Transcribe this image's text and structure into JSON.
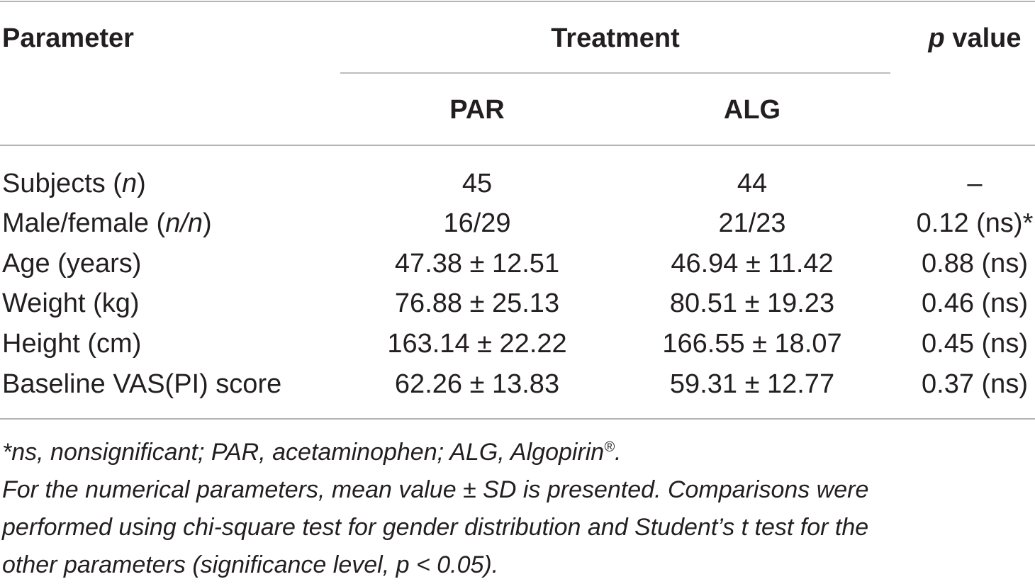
{
  "table": {
    "header": {
      "parameter": "Parameter",
      "treatment": "Treatment",
      "p_value_italic": "p",
      "p_value_rest": " value",
      "par": "PAR",
      "alg": "ALG"
    },
    "rows": [
      {
        "param": "Subjects (",
        "param_ital": "n",
        "param_end": ")",
        "par": "45",
        "alg": "44",
        "p": "–"
      },
      {
        "param": "Male/female (",
        "param_ital": "n/n",
        "param_end": ")",
        "par": "16/29",
        "alg": "21/23",
        "p": "0.12 (ns)*"
      },
      {
        "param": "Age (years)",
        "param_ital": "",
        "param_end": "",
        "par": "47.38 ± 12.51",
        "alg": "46.94 ± 11.42",
        "p": "0.88 (ns)"
      },
      {
        "param": "Weight (kg)",
        "param_ital": "",
        "param_end": "",
        "par": "76.88 ± 25.13",
        "alg": "80.51 ± 19.23",
        "p": "0.46 (ns)"
      },
      {
        "param": "Height (cm)",
        "param_ital": "",
        "param_end": "",
        "par": "163.14 ± 22.22",
        "alg": "166.55 ± 18.07",
        "p": "0.45 (ns)"
      },
      {
        "param": "Baseline VAS(PI) score",
        "param_ital": "",
        "param_end": "",
        "par": "62.26 ± 13.83",
        "alg": "59.31 ± 12.77",
        "p": "0.37 (ns)"
      }
    ]
  },
  "notes": {
    "line1": "*ns, nonsignificant; PAR, acetaminophen; ALG, Algopirin",
    "line1_sup": "®",
    "line1_end": ".",
    "line2": "For the numerical parameters, mean value ± SD is presented. Comparisons were",
    "line3": "performed using chi-square test for gender distribution and Student’s t test for the",
    "line4": "other parameters (significance level, p < 0.05)."
  }
}
